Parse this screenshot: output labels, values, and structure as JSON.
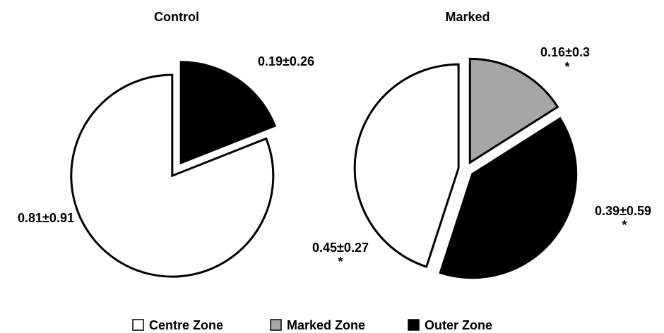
{
  "chart_data": [
    {
      "type": "pie",
      "title": "Control",
      "categories": [
        "Centre Zone",
        "Outer Zone"
      ],
      "values": [
        0.81,
        0.19
      ],
      "value_labels": [
        "0.81±0.91",
        "0.19±0.26"
      ],
      "colors": [
        "#ffffff",
        "#000000"
      ]
    },
    {
      "type": "pie",
      "title": "Marked",
      "categories": [
        "Centre Zone",
        "Marked Zone",
        "Outer Zone"
      ],
      "values": [
        0.45,
        0.16,
        0.39
      ],
      "value_labels": [
        "0.45±0.27",
        "0.16±0.3",
        "0.39±0.59"
      ],
      "annotations": [
        "*",
        "*",
        "*"
      ],
      "colors": [
        "#ffffff",
        "#a6a6a6",
        "#000000"
      ]
    }
  ]
}
